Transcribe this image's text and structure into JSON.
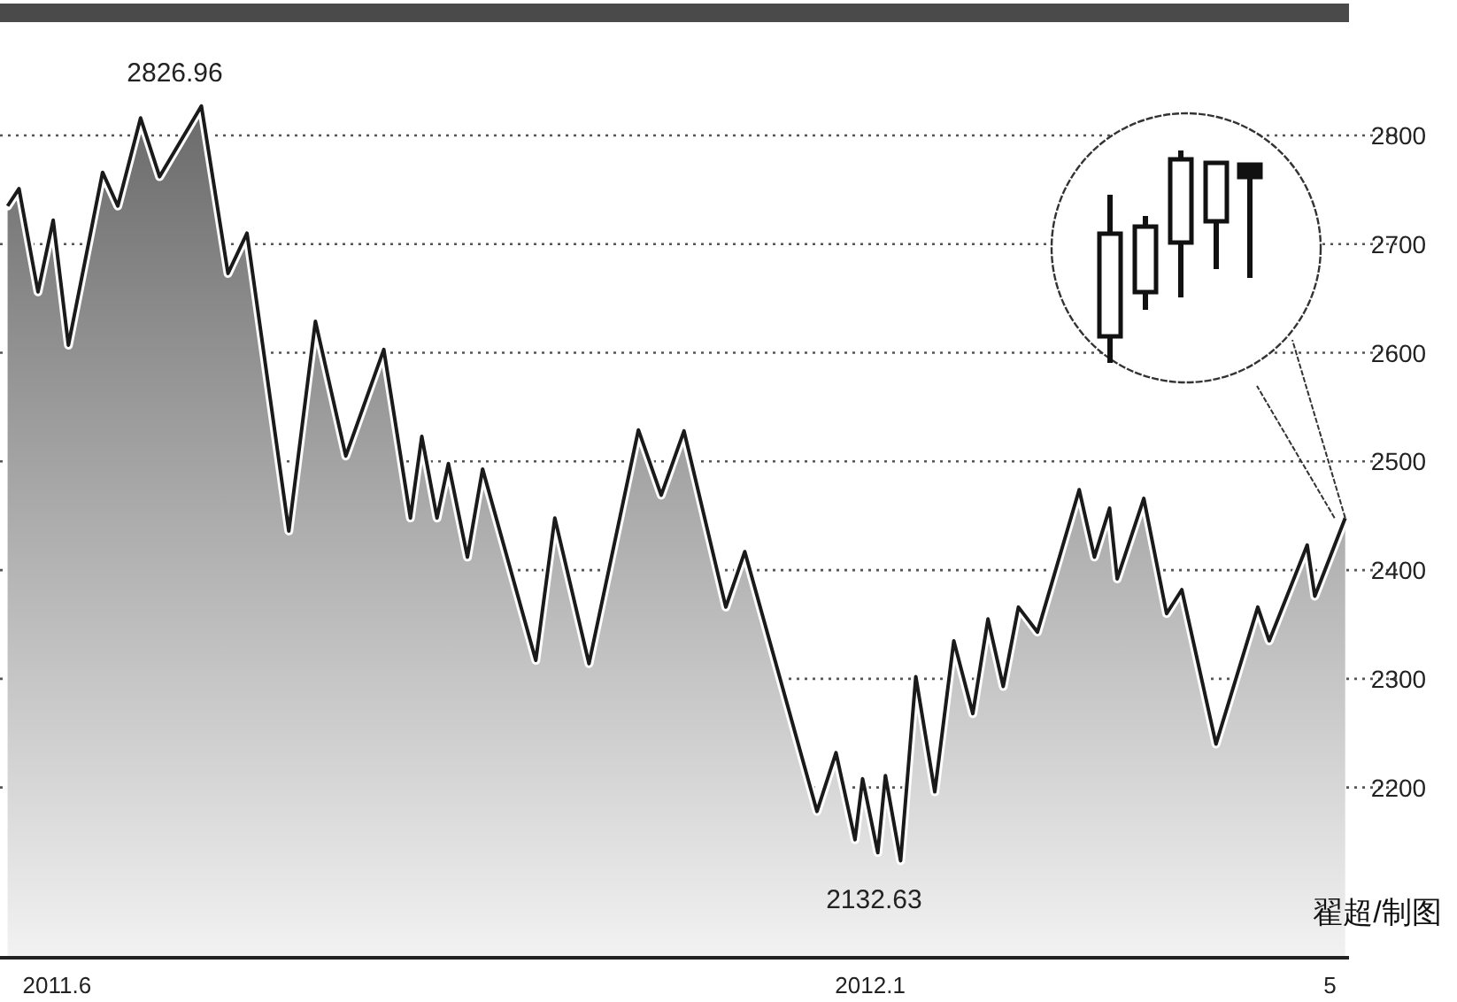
{
  "chart_data": {
    "type": "area",
    "line_style": "solid",
    "marker": "none",
    "grid": "y",
    "x": [
      "2011-05-19",
      "2011-05-22",
      "2011-05-27",
      "2011-05-31",
      "2011-06-04",
      "2011-06-13",
      "2011-06-17",
      "2011-06-23",
      "2011-06-28",
      "2011-07-09",
      "2011-07-16",
      "2011-07-21",
      "2011-08-01",
      "2011-08-08",
      "2011-08-16",
      "2011-08-26",
      "2011-09-02",
      "2011-09-05",
      "2011-09-09",
      "2011-09-12",
      "2011-09-17",
      "2011-09-21",
      "2011-10-05",
      "2011-10-10",
      "2011-10-19",
      "2011-11-01",
      "2011-11-07",
      "2011-11-13",
      "2011-11-24",
      "2011-11-29",
      "2011-12-18",
      "2011-12-23",
      "2011-12-28",
      "2011-12-30",
      "2012-01-03",
      "2012-01-05",
      "2012-01-09",
      "2012-01-13",
      "2012-01-18",
      "2012-01-23",
      "2012-01-28",
      "2012-02-01",
      "2012-02-05",
      "2012-02-09",
      "2012-02-14",
      "2012-02-25",
      "2012-02-29",
      "2012-03-04",
      "2012-03-06",
      "2012-03-13",
      "2012-03-19",
      "2012-03-23",
      "2012-04-01",
      "2012-04-12",
      "2012-04-15",
      "2012-04-25",
      "2012-04-27",
      "2012-05-05"
    ],
    "series": [
      {
        "color": "#1a1a1a",
        "values": [
          2735,
          2751,
          2656,
          2722,
          2607,
          2766,
          2735,
          2816,
          2762,
          2826.96,
          2673,
          2710,
          2436,
          2629,
          2505,
          2603,
          2448,
          2523,
          2448,
          2498,
          2412,
          2493,
          2317,
          2448,
          2314,
          2529,
          2469,
          2528,
          2366,
          2417,
          2178,
          2232,
          2152,
          2208,
          2140,
          2211,
          2132.63,
          2302,
          2196,
          2335,
          2268,
          2355,
          2293,
          2366,
          2343,
          2474,
          2412,
          2457,
          2392,
          2466,
          2360,
          2382,
          2240,
          2366,
          2335,
          2423,
          2376,
          2448
        ]
      }
    ],
    "xlim": [
      "2011-05-17",
      "2012-05-06"
    ],
    "xticks": [
      {
        "value": "2011-06-01",
        "label": "2011.6"
      },
      {
        "value": "2012-01-01",
        "label": "2012.1"
      },
      {
        "value": "2012-05-01",
        "label": "5"
      }
    ],
    "ylim": [
      2045,
      2905
    ],
    "yticks": [
      2200,
      2300,
      2400,
      2500,
      2600,
      2700,
      2800
    ],
    "annotations": [
      {
        "text": "2826.96",
        "x": "2011-07-09",
        "y": 2826.96
      },
      {
        "text": "2132.63",
        "x": "2012-01-09",
        "y": 2132.63
      },
      "翟超/制图"
    ]
  }
}
